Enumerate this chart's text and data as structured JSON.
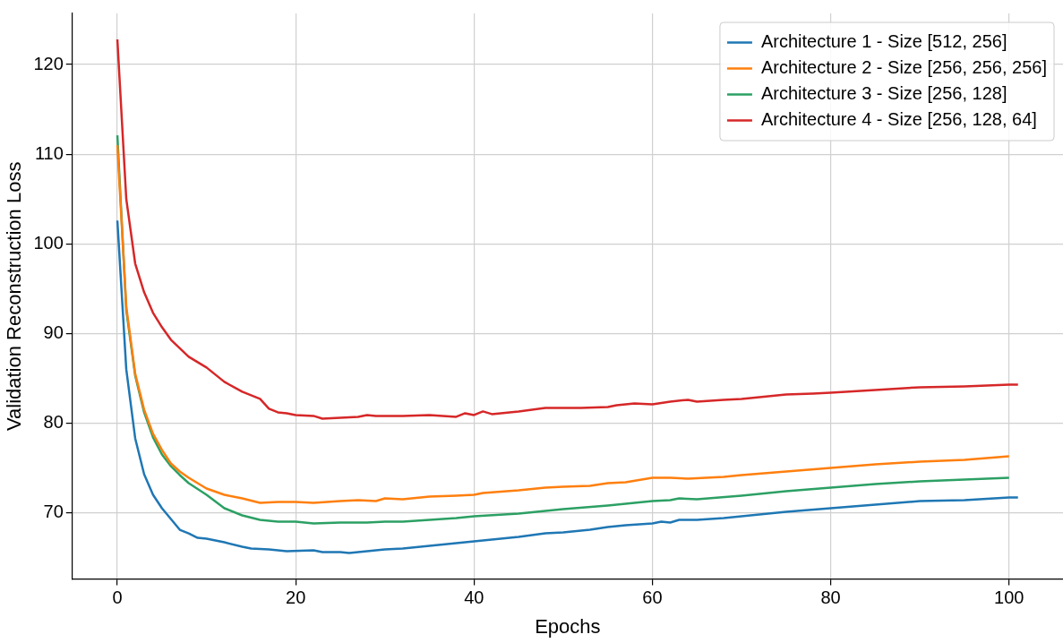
{
  "chart_data": {
    "type": "line",
    "xlabel": "Epochs",
    "ylabel": "Validation Reconstruction Loss",
    "xlim": [
      -5.05,
      106.05
    ],
    "ylim": [
      62.6,
      125.7
    ],
    "xticks": [
      0,
      20,
      40,
      60,
      80,
      100
    ],
    "yticks": [
      70,
      80,
      90,
      100,
      110,
      120
    ],
    "grid": true,
    "legend": "top right",
    "line_style": "solid",
    "marker": "none",
    "series": [
      {
        "name": "Architecture 1 - Size [512, 256]",
        "color": "#1f77b4",
        "x": [
          0,
          1,
          2,
          3,
          4,
          5,
          6,
          7,
          8,
          9,
          10,
          12,
          14,
          15,
          17,
          18,
          19,
          22,
          23,
          25,
          26,
          28,
          30,
          32,
          35,
          38,
          40,
          42,
          45,
          48,
          50,
          53,
          55,
          57,
          60,
          61,
          62,
          63,
          65,
          68,
          70,
          75,
          80,
          85,
          90,
          95,
          100,
          101
        ],
        "values": [
          102.6,
          86,
          78.3,
          74.3,
          72,
          70.5,
          69.3,
          68.1,
          67.7,
          67.2,
          67.1,
          66.7,
          66.2,
          66.0,
          65.9,
          65.8,
          65.7,
          65.8,
          65.6,
          65.6,
          65.5,
          65.7,
          65.9,
          66.0,
          66.3,
          66.6,
          66.8,
          67.0,
          67.3,
          67.7,
          67.8,
          68.1,
          68.4,
          68.6,
          68.8,
          69.0,
          68.9,
          69.2,
          69.2,
          69.4,
          69.6,
          70.1,
          70.5,
          70.9,
          71.3,
          71.4,
          71.7,
          71.7
        ]
      },
      {
        "name": "Architecture 2 - Size [256, 256, 256]",
        "color": "#ff7f0e",
        "x": [
          0,
          1,
          2,
          3,
          4,
          5,
          6,
          7,
          8,
          9,
          10,
          12,
          14,
          16,
          18,
          20,
          22,
          25,
          27,
          29,
          30,
          32,
          35,
          38,
          40,
          41,
          45,
          48,
          50,
          53,
          55,
          57,
          60,
          62,
          64,
          68,
          70,
          75,
          80,
          85,
          90,
          95,
          100
        ],
        "values": [
          111,
          93,
          85.5,
          81.5,
          78.8,
          77,
          75.5,
          74.6,
          73.9,
          73.3,
          72.7,
          72.0,
          71.6,
          71.1,
          71.2,
          71.2,
          71.1,
          71.3,
          71.4,
          71.3,
          71.6,
          71.5,
          71.8,
          71.9,
          72.0,
          72.2,
          72.5,
          72.8,
          72.9,
          73.0,
          73.3,
          73.4,
          73.9,
          73.9,
          73.8,
          74.0,
          74.2,
          74.6,
          75.0,
          75.4,
          75.7,
          75.9,
          76.3
        ]
      },
      {
        "name": "Architecture 3 - Size [256, 128]",
        "color": "#2ca064",
        "x": [
          0,
          1,
          2,
          3,
          4,
          5,
          6,
          7,
          8,
          10,
          12,
          14,
          16,
          18,
          20,
          22,
          25,
          28,
          30,
          32,
          35,
          38,
          40,
          45,
          48,
          50,
          55,
          58,
          60,
          62,
          63,
          65,
          70,
          75,
          80,
          85,
          90,
          95,
          100
        ],
        "values": [
          112.1,
          92.6,
          85.3,
          81.2,
          78.4,
          76.5,
          75.2,
          74.2,
          73.3,
          72.0,
          70.5,
          69.7,
          69.2,
          69.0,
          69.0,
          68.8,
          68.9,
          68.9,
          69.0,
          69.0,
          69.2,
          69.4,
          69.6,
          69.9,
          70.2,
          70.4,
          70.8,
          71.1,
          71.3,
          71.4,
          71.6,
          71.5,
          71.9,
          72.4,
          72.8,
          73.2,
          73.5,
          73.7,
          73.9
        ]
      },
      {
        "name": "Architecture 4 - Size [256, 128, 64]",
        "color": "#d62728",
        "x": [
          0,
          1,
          2,
          3,
          4,
          5,
          6,
          8,
          9,
          10,
          12,
          14,
          16,
          17,
          18,
          19,
          20,
          22,
          23,
          25,
          27,
          28,
          29,
          32,
          35,
          38,
          39,
          40,
          41,
          42,
          45,
          48,
          52,
          55,
          56,
          58,
          60,
          62,
          64,
          65,
          68,
          70,
          75,
          78,
          80,
          85,
          90,
          95,
          100,
          101
        ],
        "values": [
          122.8,
          105,
          97.8,
          94.6,
          92.3,
          90.7,
          89.3,
          87.4,
          86.8,
          86.2,
          84.6,
          83.5,
          82.7,
          81.6,
          81.2,
          81.1,
          80.9,
          80.8,
          80.5,
          80.6,
          80.7,
          80.9,
          80.8,
          80.8,
          80.9,
          80.7,
          81.1,
          80.9,
          81.3,
          81.0,
          81.3,
          81.7,
          81.7,
          81.8,
          82.0,
          82.2,
          82.1,
          82.4,
          82.6,
          82.4,
          82.6,
          82.7,
          83.2,
          83.3,
          83.4,
          83.7,
          84.0,
          84.1,
          84.3,
          84.3
        ]
      }
    ]
  }
}
